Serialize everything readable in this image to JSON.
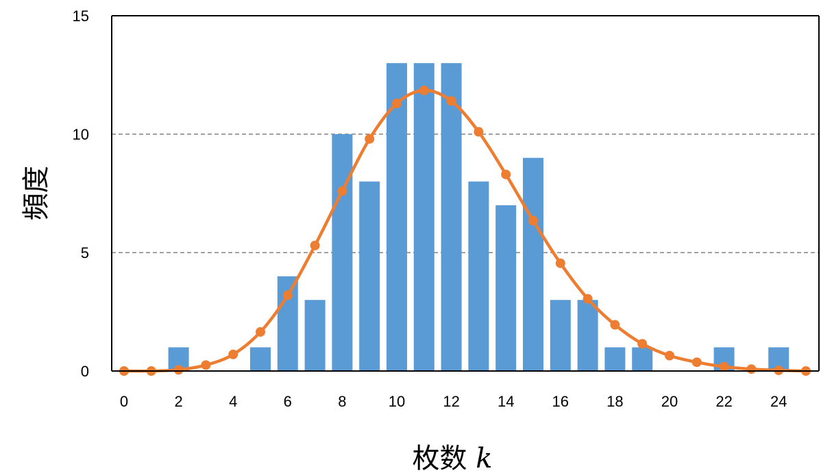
{
  "chart_data": {
    "type": "bar",
    "xlabel": "枚数",
    "xlabel_var": "k",
    "ylabel": "頻度",
    "x_ticks": [
      "0",
      "2",
      "4",
      "6",
      "8",
      "10",
      "12",
      "14",
      "16",
      "18",
      "20",
      "22",
      "24"
    ],
    "y_ticks": [
      "0",
      "5",
      "10",
      "15"
    ],
    "xlim": [
      0,
      25
    ],
    "ylim": [
      0,
      15
    ],
    "grid": "dashed horizontal at 5 and 10",
    "legend": "none",
    "colors": {
      "bars": "#5b9bd5",
      "line": "#ed7d31",
      "grid": "#808080",
      "axis": "#000000"
    },
    "series": [
      {
        "type": "bar",
        "x": [
          2,
          5,
          6,
          7,
          8,
          9,
          10,
          11,
          12,
          13,
          14,
          15,
          16,
          17,
          18,
          19,
          22,
          24
        ],
        "values": [
          1,
          1,
          4,
          3,
          10,
          8,
          13,
          13,
          13,
          8,
          7,
          9,
          3,
          3,
          1,
          1,
          1,
          1
        ]
      },
      {
        "type": "line",
        "smooth": true,
        "markers": true,
        "x": [
          0,
          1,
          2,
          3,
          4,
          5,
          6,
          7,
          8,
          9,
          10,
          11,
          12,
          13,
          14,
          15,
          16,
          17,
          18,
          19,
          20,
          21,
          22,
          23,
          24,
          25
        ],
        "values": [
          0.0,
          0.0,
          0.05,
          0.25,
          0.7,
          1.65,
          3.2,
          5.3,
          7.6,
          9.8,
          11.3,
          11.85,
          11.4,
          10.1,
          8.3,
          6.35,
          4.55,
          3.05,
          1.95,
          1.15,
          0.65,
          0.37,
          0.18,
          0.08,
          0.03,
          0.0
        ]
      }
    ]
  }
}
